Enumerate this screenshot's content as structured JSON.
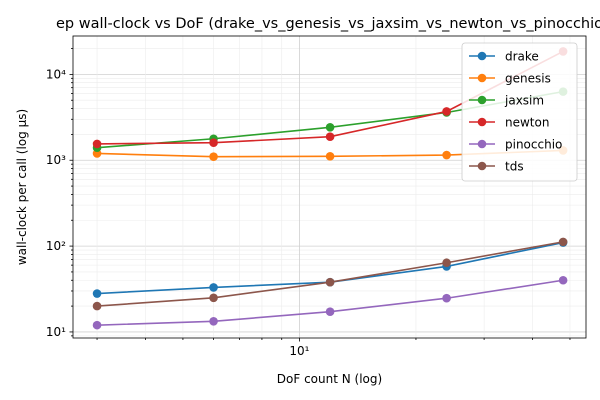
{
  "chart_data": {
    "type": "line",
    "title": "ep wall-clock vs DoF (drake_vs_genesis_vs_jaxsim_vs_newton_vs_pinocchio",
    "xlabel": "DoF count N (log)",
    "ylabel": "wall-clock per call (log µs)",
    "x_scale": "log",
    "y_scale": "log",
    "xlim": [
      2.6,
      55
    ],
    "ylim": [
      8.5,
      28000
    ],
    "grid": true,
    "legend_position": "top-right",
    "x": [
      3,
      6,
      12,
      24,
      48
    ],
    "x_tick_labels": [
      {
        "value": 10,
        "label": "10¹"
      }
    ],
    "y_tick_labels": [
      {
        "value": 10,
        "label": "10¹"
      },
      {
        "value": 100,
        "label": "10²"
      },
      {
        "value": 1000,
        "label": "10³"
      },
      {
        "value": 10000,
        "label": "10⁴"
      }
    ],
    "series": [
      {
        "name": "drake",
        "color": "#1f77b4",
        "values": [
          28,
          33,
          38,
          58,
          110
        ]
      },
      {
        "name": "genesis",
        "color": "#ff7f0e",
        "values": [
          1200,
          1100,
          1110,
          1150,
          1300
        ]
      },
      {
        "name": "jaxsim",
        "color": "#2ca02c",
        "values": [
          1400,
          1780,
          2420,
          3600,
          6300
        ]
      },
      {
        "name": "newton",
        "color": "#d62728",
        "values": [
          1550,
          1600,
          1880,
          3700,
          18500
        ]
      },
      {
        "name": "pinocchio",
        "color": "#9467bd",
        "values": [
          12,
          13.3,
          17.2,
          24.7,
          40
        ]
      },
      {
        "name": "tds",
        "color": "#8c564b",
        "values": [
          20,
          25,
          38,
          64,
          112
        ]
      }
    ]
  }
}
